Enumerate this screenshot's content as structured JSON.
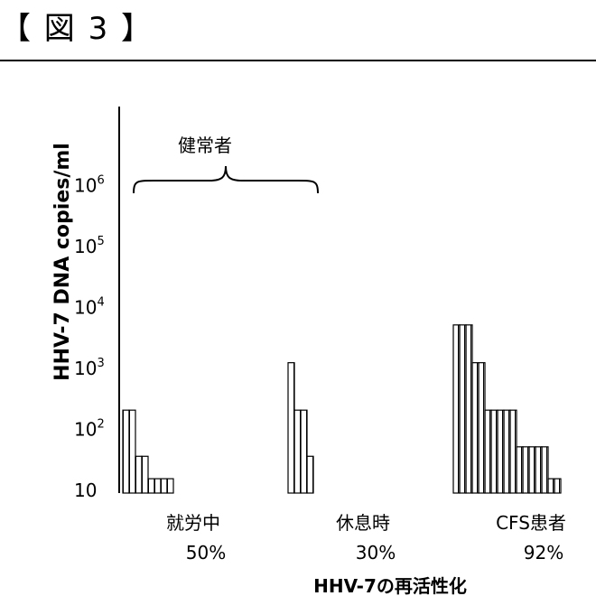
{
  "figure_title": "【 図 3 】",
  "colors": {
    "ink": "#000000",
    "background": "#ffffff"
  },
  "chart_data": {
    "type": "bar",
    "ylabel": "HHV-7 DNA copies/ml",
    "xlabel": "HHV-7の再活性化",
    "yscale": "log",
    "ylim": [
      2,
      2000000
    ],
    "yticks": [
      {
        "value": 10,
        "base": "10",
        "exp": ""
      },
      {
        "value": 100,
        "base": "10",
        "exp": "2"
      },
      {
        "value": 1000,
        "base": "10",
        "exp": "3"
      },
      {
        "value": 10000,
        "base": "10",
        "exp": "4"
      },
      {
        "value": 100000,
        "base": "10",
        "exp": "5"
      },
      {
        "value": 1000000,
        "base": "10",
        "exp": "6"
      }
    ],
    "bracket_label": "健常者",
    "bar_fill": "vertical-hatch",
    "groups": [
      {
        "name": "就労中",
        "percent": "50%",
        "values": [
          200,
          200,
          35,
          35,
          15,
          15,
          15,
          15
        ]
      },
      {
        "name": "休息時",
        "percent": "30%",
        "values": [
          1200,
          200,
          200,
          35
        ]
      },
      {
        "name": "CFS患者",
        "percent": "92%",
        "values": [
          5000,
          5000,
          5000,
          1200,
          1200,
          200,
          200,
          200,
          200,
          200,
          50,
          50,
          50,
          50,
          50,
          15,
          15
        ]
      }
    ]
  }
}
